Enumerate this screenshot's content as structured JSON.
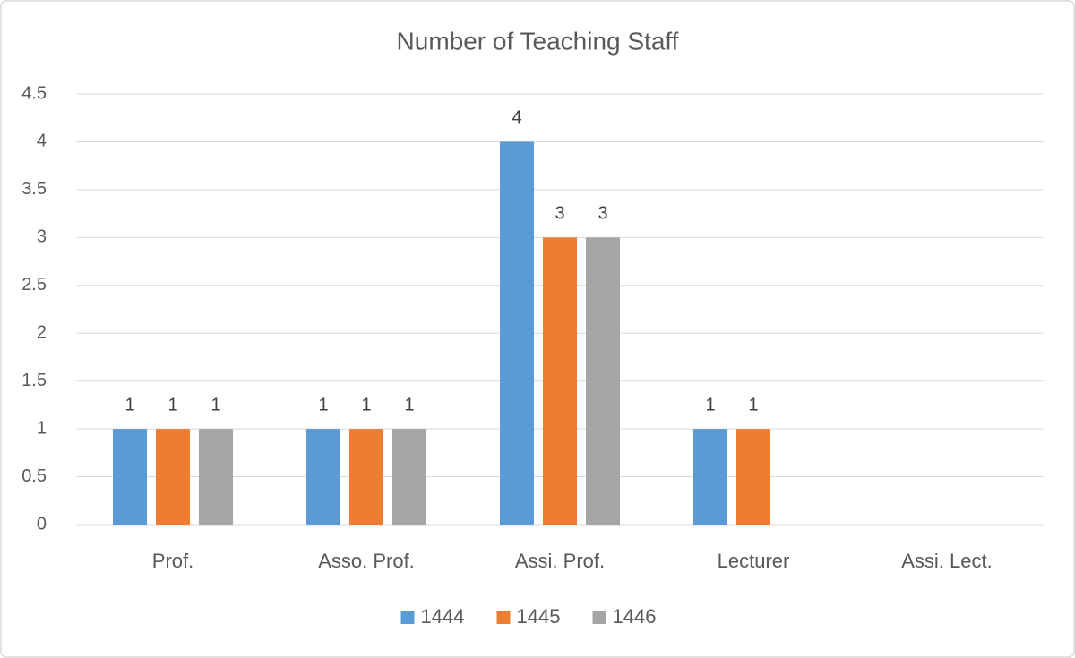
{
  "chart_data": {
    "type": "bar",
    "title": "Number of Teaching Staff",
    "categories": [
      "Prof.",
      "Asso. Prof.",
      "Assi. Prof.",
      "Lecturer",
      "Assi. Lect."
    ],
    "series": [
      {
        "name": "1444",
        "color": "#5b9bd5",
        "values": [
          1,
          1,
          4,
          1,
          null
        ]
      },
      {
        "name": "1445",
        "color": "#ed7d31",
        "values": [
          1,
          1,
          3,
          1,
          null
        ]
      },
      {
        "name": "1446",
        "color": "#a5a5a5",
        "values": [
          1,
          1,
          3,
          null,
          null
        ]
      }
    ],
    "ylim": [
      0,
      4.5
    ],
    "yticks": [
      0,
      0.5,
      1,
      1.5,
      2,
      2.5,
      3,
      3.5,
      4,
      4.5
    ],
    "grid": true,
    "legend": "bottom"
  }
}
